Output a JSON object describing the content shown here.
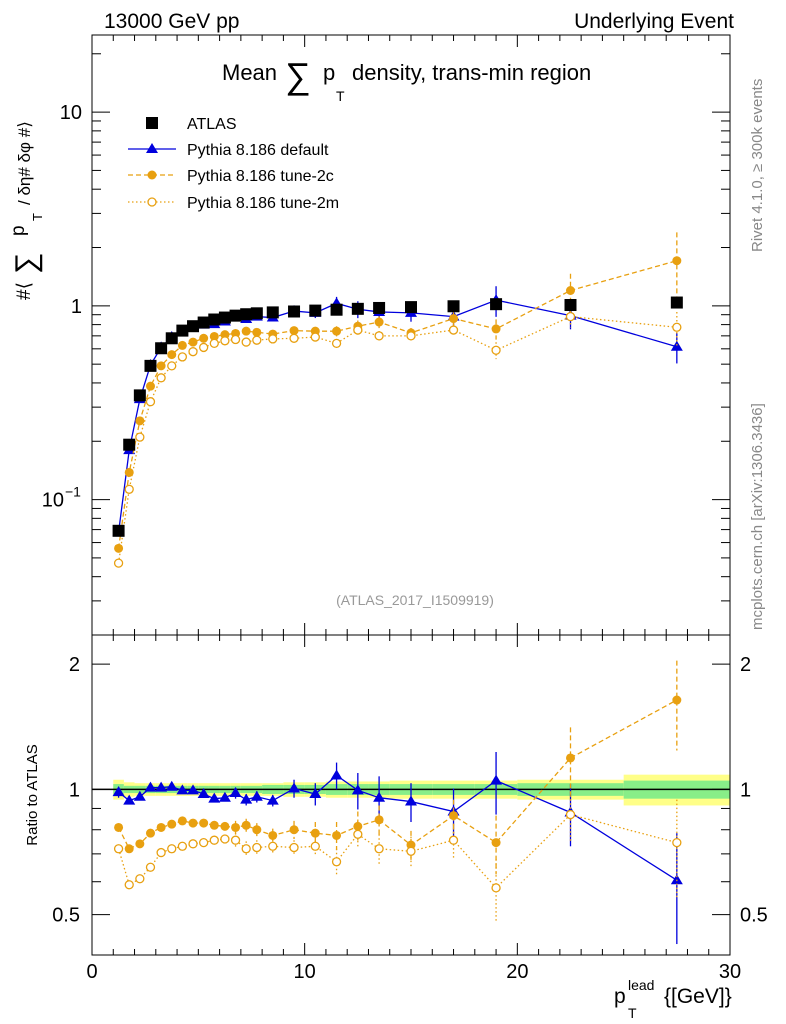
{
  "header": {
    "left": "13000 GeV pp",
    "right": "Underlying Event"
  },
  "side": {
    "rivet": "Rivet 4.1.0, ≥ 300k events",
    "mcplots": "mcplots.cern.ch [arXiv:1306.3436]"
  },
  "chart_data": {
    "type": "scatter",
    "title_prefix": "Mean",
    "title_sum": "∑",
    "title_p": "p",
    "title_sub": "T",
    "title_suffix": "density, trans-min region",
    "ylabel_main": {
      "hash1": "#⟨",
      "sum": "∑",
      "p": "p",
      "sub": "T",
      "rest": "/ δη# δφ #⟩"
    },
    "ylabel_ratio": "Ratio to ATLAS",
    "xlabel": {
      "p": "p",
      "sub": "T",
      "sup": "lead",
      "unit": "{[GeV]}"
    },
    "analysis_id": "(ATLAS_2017_I1509919)",
    "xlim": [
      0,
      30
    ],
    "ylim_main": [
      0.02,
      25
    ],
    "ylim_ratio": [
      0.4,
      2.35
    ],
    "x_ticks": [
      "0",
      "10",
      "20",
      "30"
    ],
    "y_ticks_main": [
      {
        "label": "10",
        "sup": "−1"
      },
      {
        "label": "1",
        "sup": ""
      },
      {
        "label": "10",
        "sup": ""
      }
    ],
    "y_ticks_ratio": [
      "0.5",
      "1",
      "2"
    ],
    "legend": [
      "ATLAS",
      "Pythia 8.186 default",
      "Pythia 8.186 tune-2c",
      "Pythia 8.186 tune-2m"
    ],
    "colors": {
      "data": "#000000",
      "default": "#0000dd",
      "tune2c": "#e8a010",
      "tune2m": "#e8a010",
      "band_inner": "#88ee88",
      "band_outer": "#ffff88"
    },
    "x": [
      1.25,
      1.75,
      2.25,
      2.75,
      3.25,
      3.75,
      4.25,
      4.75,
      5.25,
      5.75,
      6.25,
      6.75,
      7.25,
      7.75,
      8.5,
      9.5,
      10.5,
      11.5,
      12.5,
      13.5,
      15.0,
      17.0,
      19.0,
      22.5,
      27.5
    ],
    "bin_widths": [
      0.5,
      0.5,
      0.5,
      0.5,
      0.5,
      0.5,
      0.5,
      0.5,
      0.5,
      0.5,
      0.5,
      0.5,
      0.5,
      0.5,
      1.0,
      1.0,
      1.0,
      1.0,
      1.0,
      1.0,
      2.0,
      2.0,
      2.0,
      5.0,
      5.0
    ],
    "series": [
      {
        "name": "ATLAS",
        "values": [
          0.069,
          0.192,
          0.345,
          0.49,
          0.604,
          0.68,
          0.745,
          0.785,
          0.82,
          0.85,
          0.87,
          0.89,
          0.905,
          0.915,
          0.925,
          0.935,
          0.945,
          0.955,
          0.965,
          0.975,
          0.985,
          0.995,
          1.02,
          1.01,
          1.04
        ]
      },
      {
        "name": "Pythia 8.186 default",
        "values": [
          0.068,
          0.18,
          0.33,
          0.495,
          0.61,
          0.69,
          0.74,
          0.78,
          0.8,
          0.805,
          0.83,
          0.87,
          0.855,
          0.88,
          0.87,
          0.94,
          0.92,
          1.03,
          0.96,
          0.93,
          0.92,
          0.88,
          1.07,
          0.89,
          0.615
        ]
      },
      {
        "name": "Pythia 8.186 tune-2c",
        "values": [
          0.056,
          0.138,
          0.255,
          0.385,
          0.49,
          0.56,
          0.625,
          0.65,
          0.68,
          0.695,
          0.71,
          0.72,
          0.74,
          0.73,
          0.715,
          0.745,
          0.74,
          0.74,
          0.785,
          0.825,
          0.725,
          0.86,
          0.76,
          1.2,
          1.71
        ]
      },
      {
        "name": "Pythia 8.186 tune-2m",
        "values": [
          0.047,
          0.113,
          0.21,
          0.32,
          0.425,
          0.49,
          0.545,
          0.58,
          0.61,
          0.64,
          0.66,
          0.67,
          0.65,
          0.665,
          0.675,
          0.68,
          0.69,
          0.64,
          0.75,
          0.7,
          0.7,
          0.75,
          0.59,
          0.88,
          0.775
        ]
      }
    ],
    "ratios": {
      "default": [
        0.985,
        0.94,
        0.96,
        1.01,
        1.01,
        1.015,
        0.995,
        0.995,
        0.975,
        0.95,
        0.955,
        0.98,
        0.945,
        0.96,
        0.94,
        1.005,
        0.975,
        1.08,
        0.995,
        0.955,
        0.935,
        0.885,
        1.05,
        0.88,
        0.605
      ],
      "tune2c": [
        0.81,
        0.72,
        0.74,
        0.785,
        0.81,
        0.825,
        0.84,
        0.83,
        0.83,
        0.82,
        0.815,
        0.81,
        0.82,
        0.8,
        0.775,
        0.8,
        0.785,
        0.775,
        0.815,
        0.845,
        0.735,
        0.865,
        0.745,
        1.19,
        1.64
      ],
      "tune2m": [
        0.72,
        0.59,
        0.61,
        0.65,
        0.705,
        0.72,
        0.73,
        0.74,
        0.745,
        0.755,
        0.76,
        0.755,
        0.72,
        0.725,
        0.73,
        0.725,
        0.73,
        0.67,
        0.78,
        0.72,
        0.71,
        0.755,
        0.58,
        0.87,
        0.745
      ]
    },
    "ratio_errors": {
      "default": [
        0.03,
        0.02,
        0.02,
        0.02,
        0.02,
        0.02,
        0.02,
        0.02,
        0.02,
        0.02,
        0.02,
        0.03,
        0.03,
        0.03,
        0.03,
        0.05,
        0.06,
        0.08,
        0.1,
        0.12,
        0.1,
        0.12,
        0.18,
        0.15,
        0.18
      ],
      "tune2c": [
        0.02,
        0.02,
        0.02,
        0.02,
        0.02,
        0.02,
        0.02,
        0.02,
        0.02,
        0.02,
        0.02,
        0.03,
        0.03,
        0.03,
        0.03,
        0.04,
        0.05,
        0.06,
        0.07,
        0.07,
        0.06,
        0.08,
        0.12,
        0.22,
        0.4
      ],
      "tune2m": [
        0.02,
        0.02,
        0.02,
        0.02,
        0.02,
        0.02,
        0.02,
        0.02,
        0.02,
        0.02,
        0.02,
        0.03,
        0.03,
        0.03,
        0.03,
        0.03,
        0.04,
        0.05,
        0.06,
        0.06,
        0.06,
        0.07,
        0.1,
        0.12,
        0.2
      ]
    },
    "data_band": {
      "inner": [
        0.03,
        0.02,
        0.02,
        0.02,
        0.02,
        0.02,
        0.02,
        0.02,
        0.02,
        0.02,
        0.02,
        0.02,
        0.02,
        0.02,
        0.025,
        0.025,
        0.025,
        0.03,
        0.03,
        0.03,
        0.03,
        0.03,
        0.03,
        0.035,
        0.05
      ],
      "outer": [
        0.055,
        0.04,
        0.035,
        0.035,
        0.035,
        0.035,
        0.035,
        0.035,
        0.035,
        0.035,
        0.035,
        0.035,
        0.035,
        0.035,
        0.035,
        0.04,
        0.04,
        0.045,
        0.045,
        0.045,
        0.05,
        0.05,
        0.05,
        0.055,
        0.085
      ]
    }
  }
}
